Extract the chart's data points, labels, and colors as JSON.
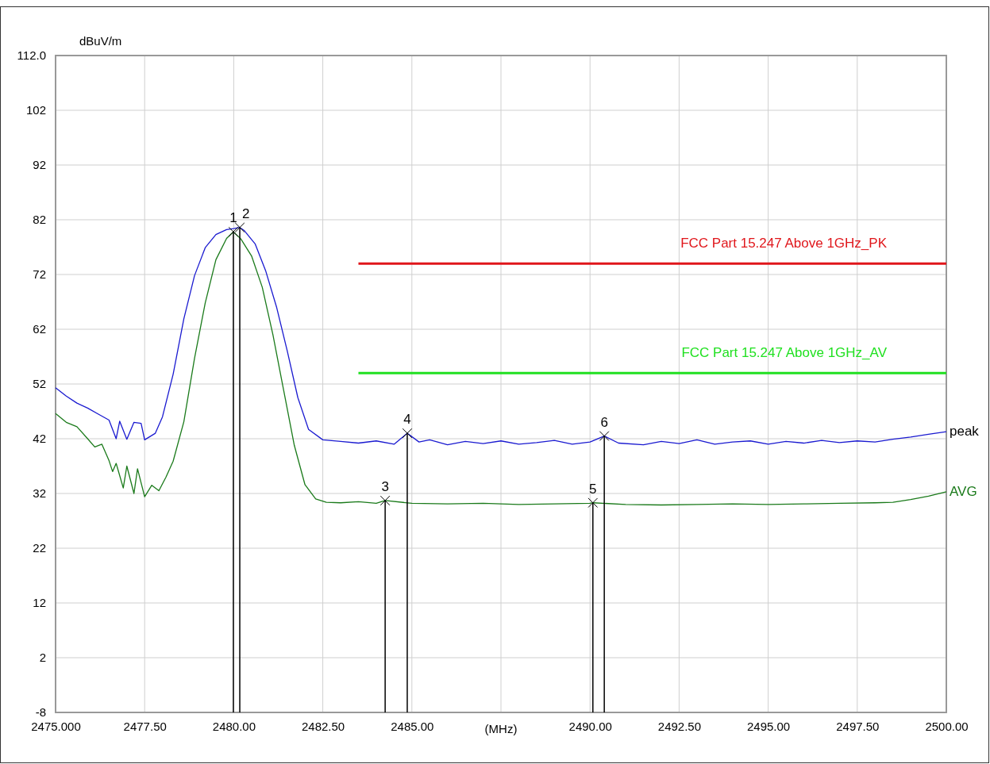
{
  "chart_data": {
    "type": "line",
    "ylabel": "dBuV/m",
    "xlabel": "(MHz)",
    "xlim": [
      2475,
      2500
    ],
    "xticks": [
      {
        "value": 2475,
        "label": "2475.000"
      },
      {
        "value": 2477.5,
        "label": "2477.50"
      },
      {
        "value": 2480,
        "label": "2480.00"
      },
      {
        "value": 2482.5,
        "label": "2482.50"
      },
      {
        "value": 2485,
        "label": "2485.00"
      },
      {
        "value": 2487.5,
        "label": null
      },
      {
        "value": 2490,
        "label": "2490.00"
      },
      {
        "value": 2492.5,
        "label": "2492.50"
      },
      {
        "value": 2495,
        "label": "2495.00"
      },
      {
        "value": 2497.5,
        "label": "2497.50"
      },
      {
        "value": 2500,
        "label": "2500.00"
      }
    ],
    "ylim": [
      -8,
      112
    ],
    "yticks": [
      -8,
      2,
      12,
      22,
      32,
      42,
      52,
      62,
      72,
      82,
      92,
      102,
      {
        "value": 112,
        "label": "112.0"
      }
    ],
    "grid": true,
    "series": [
      {
        "name": "FCC Part 15.247 Above 1GHz_PK",
        "color": "#e0161b",
        "x": [
          2483.5,
          2500
        ],
        "values": [
          74,
          74
        ]
      },
      {
        "name": "FCC Part 15.247 Above 1GHz_AV",
        "color": "#20e020",
        "x": [
          2483.5,
          2500
        ],
        "values": [
          54,
          54
        ]
      },
      {
        "name": "peak",
        "color": "#1a1ad0",
        "x": [
          2475,
          2475.3,
          2475.6,
          2475.9,
          2476.2,
          2476.5,
          2476.7,
          2476.8,
          2477.0,
          2477.2,
          2477.4,
          2477.5,
          2477.8,
          2478.0,
          2478.3,
          2478.6,
          2478.9,
          2479.2,
          2479.5,
          2479.8,
          2480.0,
          2480.17,
          2480.3,
          2480.6,
          2480.9,
          2481.2,
          2481.5,
          2481.8,
          2482.1,
          2482.5,
          2483,
          2483.5,
          2484,
          2484.5,
          2484.87,
          2485.2,
          2485.5,
          2486,
          2486.5,
          2487,
          2487.5,
          2488,
          2488.5,
          2489,
          2489.5,
          2490,
          2490.4,
          2490.8,
          2491.5,
          2492,
          2492.5,
          2493,
          2493.5,
          2494,
          2494.5,
          2495,
          2495.5,
          2496,
          2496.5,
          2497,
          2497.5,
          2498,
          2498.5,
          2499,
          2499.5,
          2500
        ],
        "values": [
          51.3,
          49.8,
          48.5,
          47.6,
          46.5,
          45.4,
          42.0,
          45.2,
          41.9,
          45.0,
          44.8,
          41.8,
          43.0,
          46.0,
          53.8,
          63.9,
          71.8,
          76.9,
          79.3,
          80.2,
          80.4,
          80.6,
          80.0,
          77.6,
          72.6,
          66.1,
          58.1,
          49.5,
          43.7,
          41.8,
          41.5,
          41.2,
          41.6,
          41.0,
          43.0,
          41.4,
          41.8,
          40.9,
          41.5,
          41.1,
          41.6,
          41.0,
          41.3,
          41.7,
          41.0,
          41.4,
          42.5,
          41.2,
          40.9,
          41.5,
          41.1,
          41.8,
          41.0,
          41.4,
          41.6,
          41.0,
          41.5,
          41.2,
          41.7,
          41.3,
          41.6,
          41.4,
          41.9,
          42.3,
          42.8,
          43.3
        ]
      },
      {
        "name": "AVG",
        "color": "#1a7a1a",
        "x": [
          2475,
          2475.3,
          2475.6,
          2475.9,
          2476.1,
          2476.3,
          2476.5,
          2476.6,
          2476.7,
          2476.9,
          2477.0,
          2477.2,
          2477.3,
          2477.5,
          2477.7,
          2477.9,
          2478.1,
          2478.3,
          2478.6,
          2478.9,
          2479.2,
          2479.5,
          2479.8,
          2479.99,
          2480.2,
          2480.5,
          2480.8,
          2481.1,
          2481.4,
          2481.7,
          2482.0,
          2482.3,
          2482.6,
          2483,
          2483.5,
          2484,
          2484.25,
          2485,
          2486,
          2487,
          2488,
          2489,
          2490,
          2490.08,
          2491,
          2492,
          2493,
          2494,
          2495,
          2496,
          2497,
          2498,
          2498.5,
          2499,
          2499.5,
          2500
        ],
        "values": [
          46.6,
          45.0,
          44.2,
          42.0,
          40.5,
          41.0,
          38.0,
          36.0,
          37.5,
          33.0,
          37.0,
          32.0,
          36.5,
          31.4,
          33.5,
          32.5,
          35.0,
          37.9,
          45.1,
          56.7,
          66.8,
          74.7,
          78.6,
          79.8,
          78.5,
          75.4,
          69.7,
          61.0,
          50.9,
          40.8,
          33.6,
          31.0,
          30.4,
          30.3,
          30.5,
          30.2,
          30.7,
          30.2,
          30.1,
          30.2,
          30.0,
          30.1,
          30.2,
          30.3,
          30.0,
          29.9,
          30.0,
          30.1,
          30.0,
          30.1,
          30.2,
          30.3,
          30.4,
          30.9,
          31.5,
          32.3
        ]
      },
      {
        "type": "lollipop",
        "color": "#000000",
        "marker": "cross",
        "x": [
          2479.99,
          2480.17,
          2484.25,
          2484.87,
          2490.08,
          2490.4
        ],
        "values": [
          79.8,
          80.6,
          30.7,
          43.0,
          30.3,
          42.5
        ]
      }
    ],
    "annotations": [
      {
        "text": "1",
        "x": 2479.99,
        "y": 79.8
      },
      {
        "text": "2",
        "x": 2480.17,
        "y": 80.6
      },
      {
        "text": "3",
        "x": 2484.25,
        "y": 30.7
      },
      {
        "text": "4",
        "x": 2484.87,
        "y": 43.0
      },
      {
        "text": "5",
        "x": 2490.08,
        "y": 30.3
      },
      {
        "text": "6",
        "x": 2490.4,
        "y": 42.5
      }
    ]
  }
}
